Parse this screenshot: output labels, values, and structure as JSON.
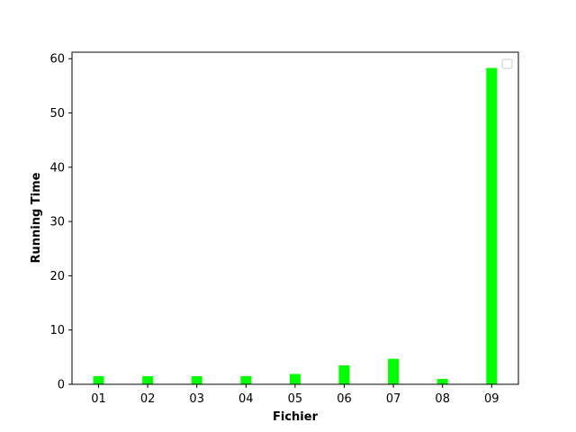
{
  "chart_data": {
    "type": "bar",
    "title": "",
    "xlabel": "Fichier",
    "ylabel": "Running Time",
    "categories": [
      "01",
      "02",
      "03",
      "04",
      "05",
      "06",
      "07",
      "08",
      "09"
    ],
    "values": [
      1.5,
      1.5,
      1.5,
      1.5,
      1.9,
      3.5,
      4.7,
      1.0,
      58.3
    ],
    "ylim": [
      0,
      61.2
    ],
    "yticks": [
      0,
      10,
      20,
      30,
      40,
      50,
      60
    ],
    "bar_color": "#00ff00",
    "grid": false,
    "legend": {
      "placement": "top-right",
      "entries": []
    }
  }
}
